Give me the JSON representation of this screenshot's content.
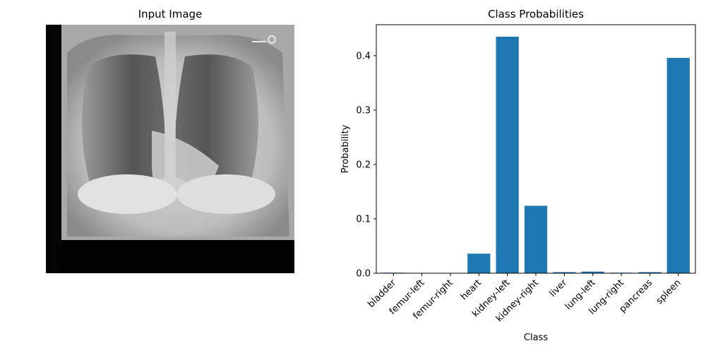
{
  "left_panel": {
    "title": "Input Image"
  },
  "chart_data": {
    "type": "bar",
    "title": "Class Probabilities",
    "xlabel": "Class",
    "ylabel": "Probability",
    "categories": [
      "bladder",
      "femur-left",
      "femur-right",
      "heart",
      "kidney-left",
      "kidney-right",
      "liver",
      "lung-left",
      "lung-right",
      "pancreas",
      "spleen"
    ],
    "values": [
      0.001,
      0.0,
      0.0,
      0.036,
      0.435,
      0.124,
      0.002,
      0.003,
      0.001,
      0.002,
      0.396
    ],
    "ylim": [
      0,
      0.457
    ],
    "yticks": [
      0.0,
      0.1,
      0.2,
      0.3,
      0.4
    ],
    "ytick_labels": [
      "0.0",
      "0.1",
      "0.2",
      "0.3",
      "0.4"
    ],
    "bar_color": "#1f77b4",
    "grid": false
  }
}
